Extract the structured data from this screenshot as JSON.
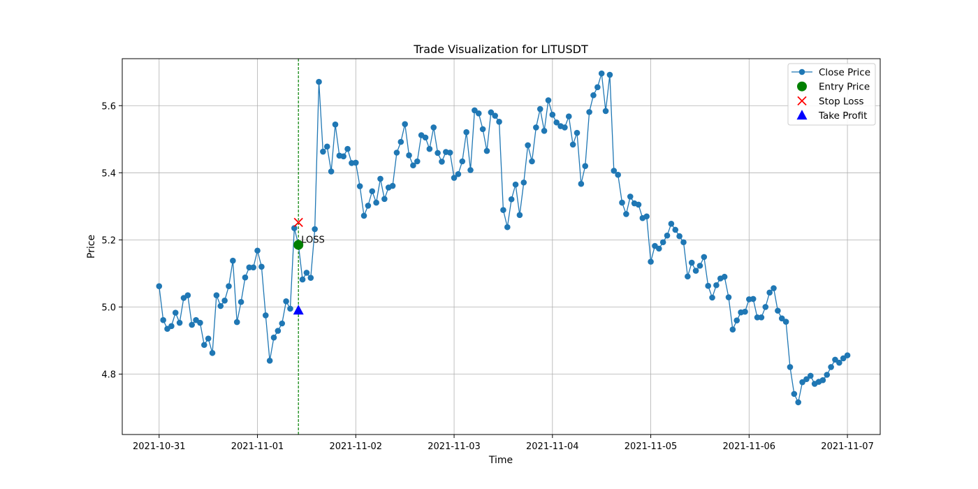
{
  "chart_data": {
    "type": "line",
    "title": "Trade Visualization for LITUSDT",
    "xlabel": "Time",
    "ylabel": "Price",
    "x_start": "2021-10-31T00:00",
    "interval_hours": 1,
    "xlim": [
      "2021-10-30T15:00",
      "2021-11-07T08:00"
    ],
    "ylim": [
      4.62,
      5.74
    ],
    "x_ticks": [
      "2021-10-31",
      "2021-11-01",
      "2021-11-02",
      "2021-11-03",
      "2021-11-04",
      "2021-11-05",
      "2021-11-06",
      "2021-11-07"
    ],
    "y_ticks": [
      4.8,
      5.0,
      5.2,
      5.4,
      5.6
    ],
    "y_tick_labels": [
      "4.8",
      "5.0",
      "5.2",
      "5.4",
      "5.6"
    ],
    "grid": true,
    "legend_position": "top-right",
    "series": [
      {
        "name": "Close Price",
        "color": "#1f77b4",
        "values": [
          5.062,
          4.961,
          4.935,
          4.943,
          4.983,
          4.953,
          5.027,
          5.035,
          4.947,
          4.961,
          4.953,
          4.887,
          4.906,
          4.863,
          5.035,
          5.003,
          5.019,
          5.062,
          5.138,
          4.955,
          5.015,
          5.088,
          5.118,
          5.118,
          5.168,
          5.12,
          4.975,
          4.84,
          4.909,
          4.929,
          4.951,
          5.017,
          4.995,
          5.235,
          5.186,
          5.082,
          5.102,
          5.087,
          5.232,
          5.671,
          5.463,
          5.478,
          5.404,
          5.544,
          5.451,
          5.449,
          5.471,
          5.429,
          5.43,
          5.36,
          5.272,
          5.302,
          5.345,
          5.311,
          5.382,
          5.322,
          5.356,
          5.361,
          5.46,
          5.492,
          5.545,
          5.452,
          5.422,
          5.434,
          5.512,
          5.505,
          5.471,
          5.535,
          5.459,
          5.433,
          5.462,
          5.46,
          5.385,
          5.396,
          5.434,
          5.521,
          5.408,
          5.586,
          5.577,
          5.53,
          5.465,
          5.58,
          5.57,
          5.552,
          5.289,
          5.238,
          5.321,
          5.365,
          5.274,
          5.371,
          5.482,
          5.434,
          5.535,
          5.59,
          5.525,
          5.616,
          5.573,
          5.55,
          5.539,
          5.535,
          5.568,
          5.484,
          5.519,
          5.367,
          5.42,
          5.581,
          5.631,
          5.655,
          5.696,
          5.584,
          5.692,
          5.406,
          5.394,
          5.311,
          5.277,
          5.329,
          5.309,
          5.305,
          5.265,
          5.27,
          5.135,
          5.182,
          5.174,
          5.193,
          5.213,
          5.248,
          5.23,
          5.211,
          5.193,
          5.091,
          5.132,
          5.108,
          5.123,
          5.149,
          5.063,
          5.028,
          5.065,
          5.085,
          5.09,
          5.029,
          4.933,
          4.96,
          4.984,
          4.986,
          5.023,
          5.024,
          4.969,
          4.969,
          5.0,
          5.043,
          5.056,
          4.989,
          4.966,
          4.956,
          4.821,
          4.741,
          4.716,
          4.776,
          4.785,
          4.795,
          4.771,
          4.777,
          4.782,
          4.798,
          4.821,
          4.843,
          4.834,
          4.847,
          4.856
        ]
      }
    ],
    "markers": [
      {
        "name": "Entry Price",
        "x": "2021-11-01T10:00",
        "y": 5.185,
        "color": "#008000",
        "shape": "circle"
      },
      {
        "name": "Stop Loss",
        "x": "2021-11-01T10:00",
        "y": 5.252,
        "color": "#ff0000",
        "shape": "x"
      },
      {
        "name": "Take Profit",
        "x": "2021-11-01T10:00",
        "y": 4.99,
        "color": "#0000ff",
        "shape": "triangle"
      }
    ],
    "vline": {
      "x": "2021-11-01T10:00",
      "color": "#008000",
      "style": "dashed"
    },
    "annotations": [
      {
        "text": "LOSS",
        "x": "2021-11-01T10:00",
        "y": 5.185
      }
    ],
    "legend": [
      "Close Price",
      "Entry Price",
      "Stop Loss",
      "Take Profit"
    ]
  }
}
